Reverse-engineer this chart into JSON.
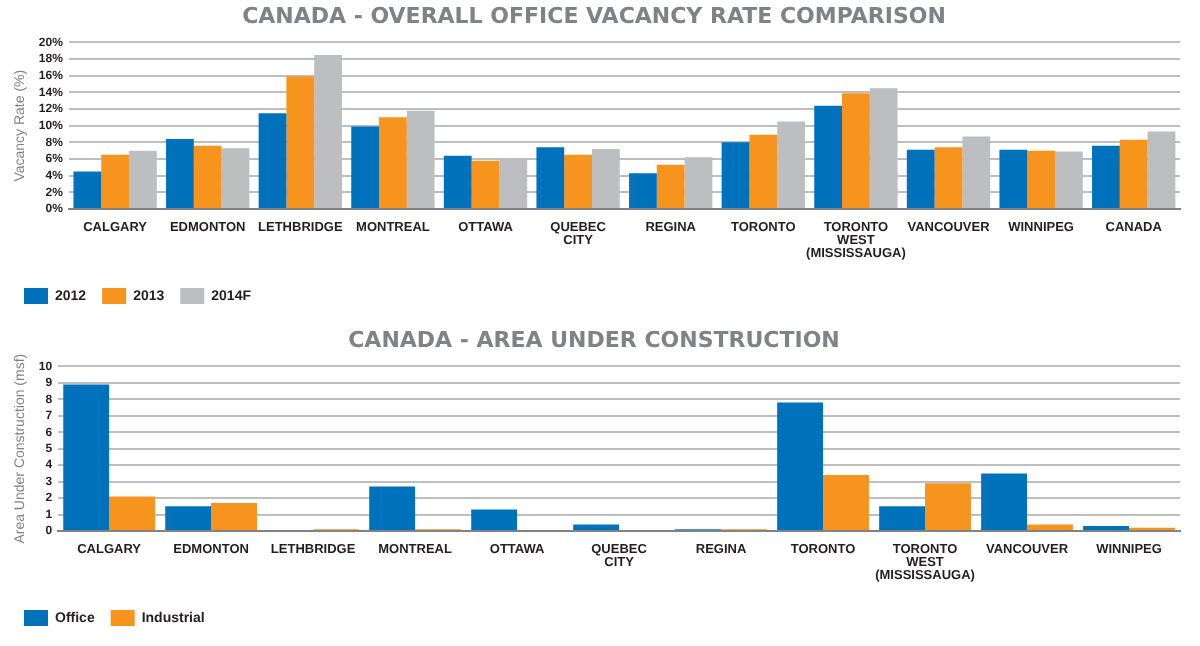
{
  "chart_data": [
    {
      "type": "bar",
      "title": "CANADA - OVERALL OFFICE VACANCY RATE COMPARISON",
      "ylabel": "Vacancy Rate (%)",
      "categories": [
        "CALGARY",
        "EDMONTON",
        "LETHBRIDGE",
        "MONTREAL",
        "OTTAWA",
        "QUEBEC CITY",
        "REGINA",
        "TORONTO",
        "TORONTO WEST (MISSISSAUGA)",
        "VANCOUVER",
        "WINNIPEG",
        "CANADA"
      ],
      "series": [
        {
          "name": "2012",
          "color": "#0072bc",
          "values": [
            4.5,
            8.4,
            11.5,
            9.9,
            6.4,
            7.4,
            4.3,
            8.0,
            12.4,
            7.1,
            7.1,
            7.6
          ]
        },
        {
          "name": "2013",
          "color": "#f7941d",
          "values": [
            6.5,
            7.6,
            15.9,
            11.0,
            5.8,
            6.5,
            5.3,
            8.9,
            13.9,
            7.4,
            7.0,
            8.3
          ]
        },
        {
          "name": "2014F",
          "color": "#bcbec0",
          "values": [
            7.0,
            7.3,
            18.5,
            11.8,
            6.1,
            7.2,
            6.2,
            10.5,
            14.5,
            8.7,
            6.9,
            9.3
          ]
        }
      ],
      "ylim": [
        0,
        20
      ],
      "yticks": [
        {
          "value": 0,
          "label": "0%"
        },
        {
          "value": 2,
          "label": "2%"
        },
        {
          "value": 4,
          "label": "4%"
        },
        {
          "value": 6,
          "label": "6%"
        },
        {
          "value": 8,
          "label": "8%"
        },
        {
          "value": 10,
          "label": "10%"
        },
        {
          "value": 12,
          "label": "12%"
        },
        {
          "value": 14,
          "label": "14%"
        },
        {
          "value": 16,
          "label": "16%"
        },
        {
          "value": 18,
          "label": "18%"
        },
        {
          "value": 20,
          "label": "20%"
        }
      ],
      "grid": "y",
      "legend": "bottom left"
    },
    {
      "type": "bar",
      "title": "CANADA - AREA UNDER CONSTRUCTION",
      "ylabel": "Area Under Construction (msf)",
      "categories": [
        "CALGARY",
        "EDMONTON",
        "LETHBRIDGE",
        "MONTREAL",
        "OTTAWA",
        "QUEBEC CITY",
        "REGINA",
        "TORONTO",
        "TORONTO WEST (MISSISSAUGA)",
        "VANCOUVER",
        "WINNIPEG"
      ],
      "series": [
        {
          "name": "Office",
          "color": "#0072bc",
          "values": [
            8.9,
            1.5,
            0,
            2.7,
            1.3,
            0.4,
            0.1,
            7.8,
            1.5,
            3.5,
            0.3
          ]
        },
        {
          "name": "Industrial",
          "color": "#f7941d",
          "values": [
            2.1,
            1.7,
            0.1,
            0.1,
            0,
            0,
            0.1,
            3.4,
            2.9,
            0.4,
            0.2
          ]
        }
      ],
      "ylim": [
        0,
        10
      ],
      "yticks": [
        0,
        1,
        2,
        3,
        4,
        5,
        6,
        7,
        8,
        9,
        10
      ],
      "grid": "y",
      "legend": "bottom left"
    }
  ]
}
